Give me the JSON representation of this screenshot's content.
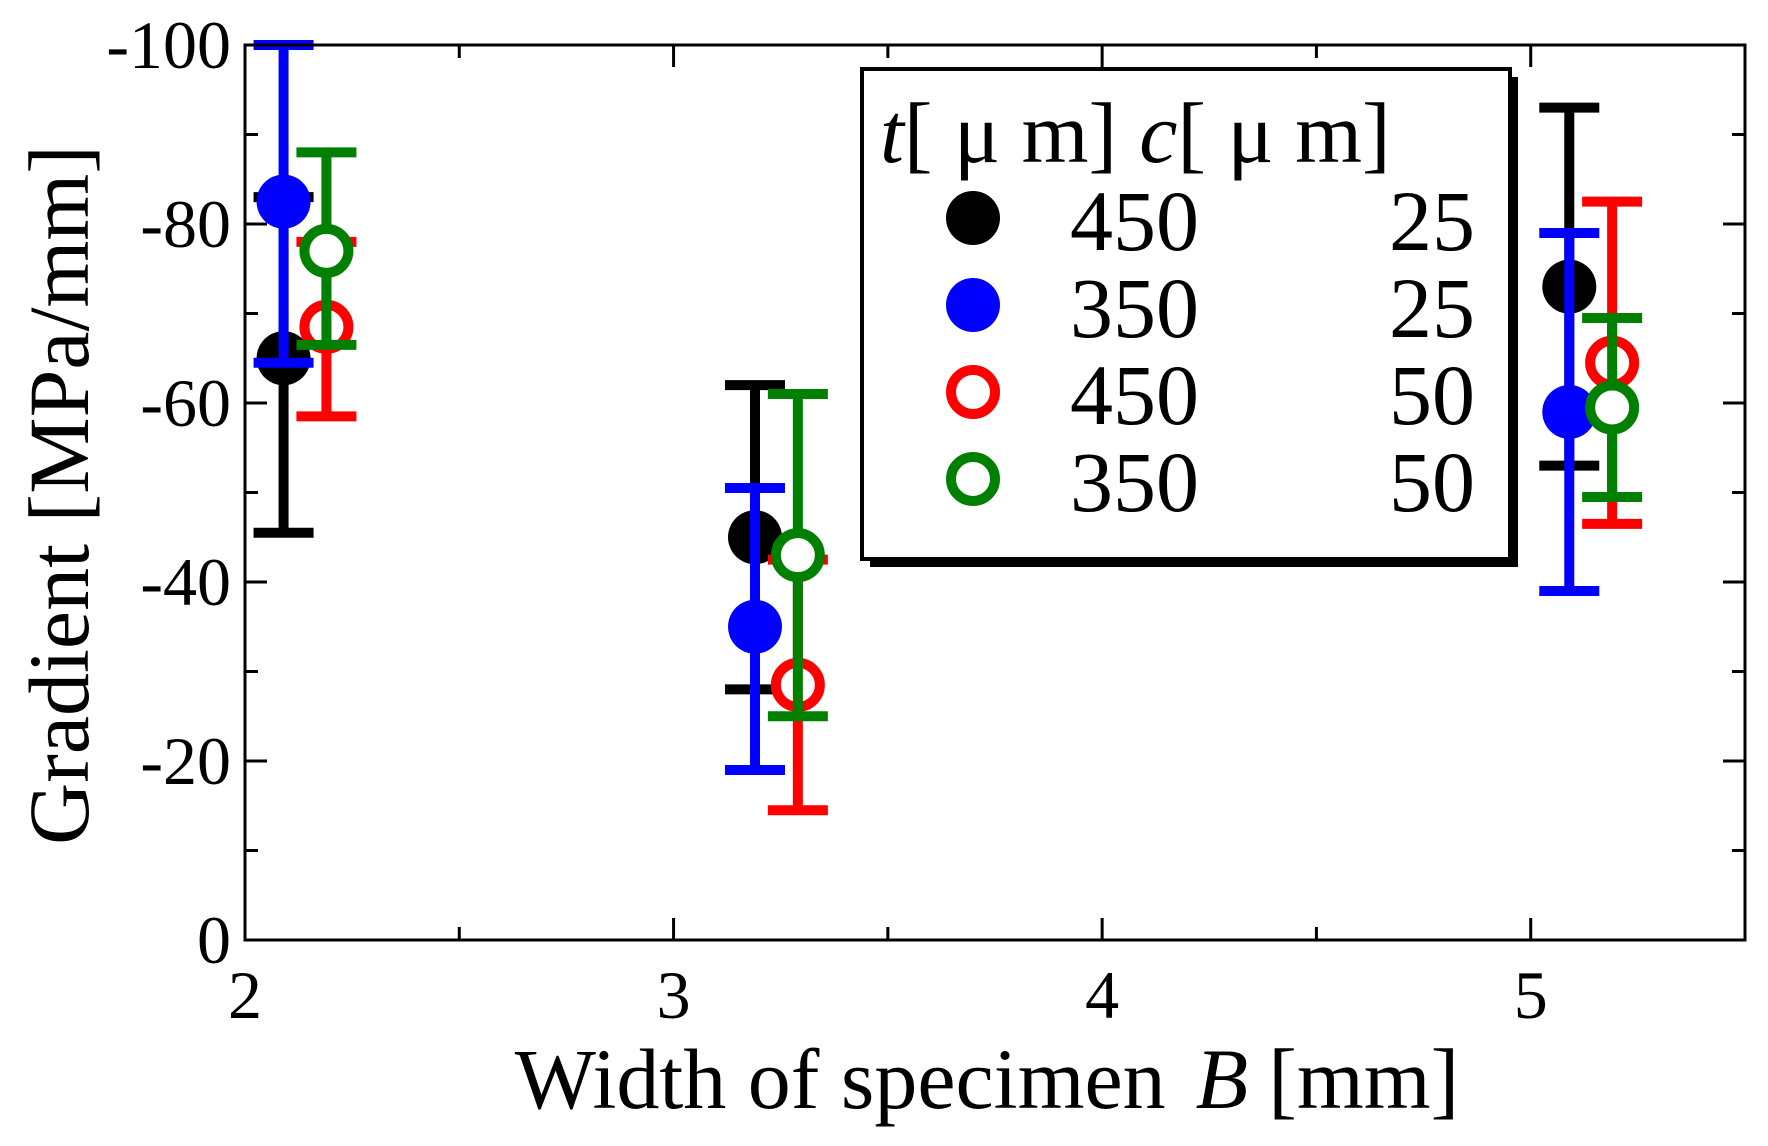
{
  "chart_data": {
    "type": "scatter",
    "title": "",
    "xlabel": "Width of specimen",
    "xlabel_symbol": "B",
    "xlabel_unit": "[mm]",
    "ylabel": "Gradient [MPa/mm]",
    "xlim": [
      2,
      5.5
    ],
    "ylim": [
      0,
      -100
    ],
    "x_ticks": [
      2,
      3,
      4,
      5
    ],
    "x_tick_labels": [
      "2",
      "3",
      "4",
      "5"
    ],
    "y_ticks": [
      0,
      -20,
      -40,
      -60,
      -80,
      -100
    ],
    "y_tick_labels": [
      "0",
      "-20",
      "-40",
      "-60",
      "-80",
      "-100"
    ],
    "grid": false,
    "legend_position": "top-right",
    "legend_header": {
      "t_symbol": "t",
      "t_unit": "[ μ m]",
      "c_symbol": "c",
      "c_unit": "[ μ m]"
    },
    "series": [
      {
        "name": "450 / 25",
        "t": "450",
        "c": "25",
        "color": "#000000",
        "filled": true,
        "points": [
          {
            "x": 2.09,
            "y": -65,
            "err_low": -45.5,
            "err_high": -83
          },
          {
            "x": 3.19,
            "y": -45,
            "err_low": -28,
            "err_high": -62
          },
          {
            "x": 5.09,
            "y": -73,
            "err_low": -53,
            "err_high": -93
          }
        ]
      },
      {
        "name": "350 / 25",
        "t": "350",
        "c": "25",
        "color": "#0000ff",
        "filled": true,
        "points": [
          {
            "x": 2.09,
            "y": -82.5,
            "err_low": -64.5,
            "err_high": -100
          },
          {
            "x": 3.19,
            "y": -35,
            "err_low": -19,
            "err_high": -50.5
          },
          {
            "x": 5.09,
            "y": -59,
            "err_low": -39,
            "err_high": -79
          }
        ]
      },
      {
        "name": "450 / 50",
        "t": "450",
        "c": "50",
        "color": "#ff0000",
        "filled": false,
        "points": [
          {
            "x": 2.19,
            "y": -68.5,
            "err_low": -58.5,
            "err_high": -78
          },
          {
            "x": 3.29,
            "y": -28.5,
            "err_low": -14.5,
            "err_high": -42.5
          },
          {
            "x": 5.19,
            "y": -64.5,
            "err_low": -46.5,
            "err_high": -82.5
          }
        ]
      },
      {
        "name": "350 / 50",
        "t": "350",
        "c": "50",
        "color": "#008000",
        "filled": false,
        "points": [
          {
            "x": 2.19,
            "y": -77,
            "err_low": -66.5,
            "err_high": -88
          },
          {
            "x": 3.29,
            "y": -43,
            "err_low": -25,
            "err_high": -61
          },
          {
            "x": 5.19,
            "y": -59.5,
            "err_low": -49.5,
            "err_high": -69.5
          }
        ]
      }
    ]
  }
}
